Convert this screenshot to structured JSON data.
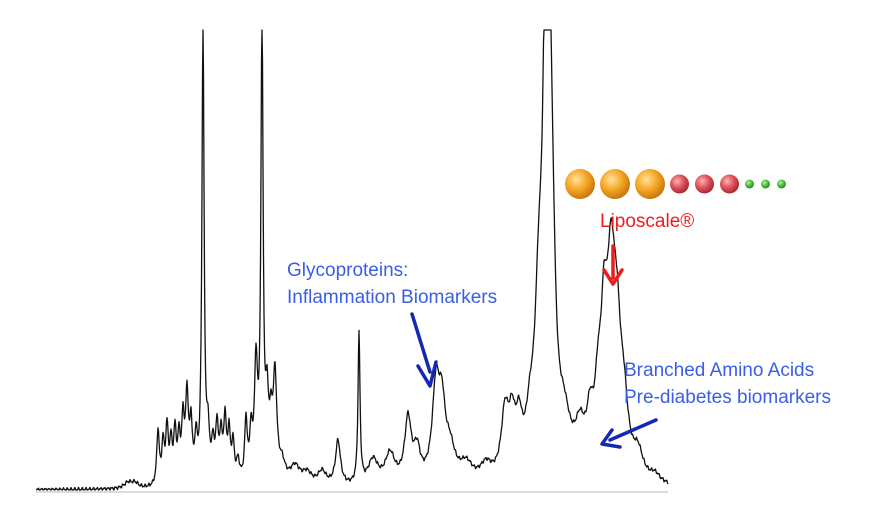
{
  "chart_data": {
    "type": "line",
    "title": "",
    "xlabel": "",
    "ylabel": "",
    "grid": false,
    "legend": "none",
    "series": [
      {
        "name": "",
        "x": [],
        "y": []
      }
    ],
    "annotations": {
      "glycoproteins": {
        "line1": "Glycoproteins:",
        "line2": "Inflammation Biomarkers"
      },
      "liposcale": "Liposcale®",
      "branched": {
        "line1": "Branched Amino Acids",
        "line2": "Pre-diabetes biomarkers"
      }
    },
    "particles": [
      {
        "size": 3,
        "color": "orange"
      },
      {
        "size": 3,
        "color": "orange"
      },
      {
        "size": 3,
        "color": "orange"
      },
      {
        "size": 2,
        "color": "red"
      },
      {
        "size": 2,
        "color": "red"
      },
      {
        "size": 2,
        "color": "red"
      },
      {
        "size": 1,
        "color": "green"
      },
      {
        "size": 1,
        "color": "green"
      },
      {
        "size": 1,
        "color": "green"
      }
    ],
    "colors": {
      "spectrum": "#111111",
      "axis": "#c8c8c8",
      "label_blue": "#3a5ee6",
      "arrow_blue": "#1428b4",
      "label_red": "#ee1c1c",
      "orange": "#f5a623",
      "red": "#e0505a",
      "green": "#4cc03c"
    }
  }
}
